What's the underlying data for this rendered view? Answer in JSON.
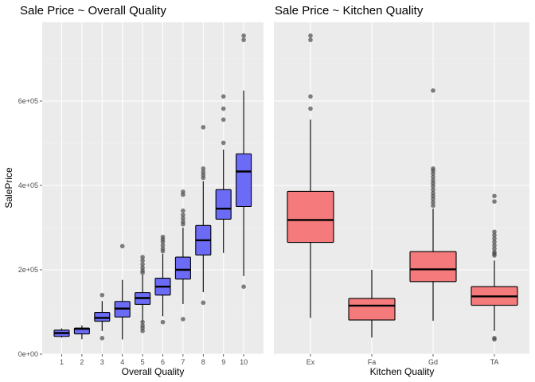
{
  "colors": {
    "panel_bg": "#ebebeb",
    "grid_major": "#ffffff",
    "grid_minor": "#f3f3f3",
    "box_fill_left": "#6b6bf5",
    "box_fill_right": "#f47a7c",
    "box_stroke": "#000000",
    "outlier": "#4a4a4a"
  },
  "chart_data": [
    {
      "type": "boxplot",
      "title": "Sale Price ~ Overall Quality",
      "xlabel": "Overall Quality",
      "ylabel": "SalePrice",
      "ylim": [
        0,
        760000
      ],
      "yticks": [
        0,
        200000,
        400000,
        600000
      ],
      "ytick_labels": [
        "0e+00",
        "2e+05",
        "4e+05",
        "6e+05"
      ],
      "grid": true,
      "categories": [
        "1",
        "2",
        "3",
        "4",
        "5",
        "6",
        "7",
        "8",
        "9",
        "10"
      ],
      "boxes": [
        {
          "category": "1",
          "whisker_low": 39300,
          "q1": 42000,
          "median": 50000,
          "q3": 57000,
          "whisker_high": 61000,
          "outliers": []
        },
        {
          "category": "2",
          "whisker_low": 35300,
          "q1": 48000,
          "median": 60000,
          "q3": 62000,
          "whisker_high": 68000,
          "outliers": []
        },
        {
          "category": "3",
          "whisker_low": 55000,
          "q1": 78000,
          "median": 86000,
          "q3": 99000,
          "whisker_high": 126000,
          "outliers": [
            140000,
            38000
          ]
        },
        {
          "category": "4",
          "whisker_low": 34900,
          "q1": 88000,
          "median": 108000,
          "q3": 125000,
          "whisker_high": 176000,
          "outliers": [
            256000
          ]
        },
        {
          "category": "5",
          "whisker_low": 76000,
          "q1": 118000,
          "median": 133000,
          "q3": 146000,
          "whisker_high": 188000,
          "outliers": [
            230000,
            222000,
            213000,
            205000,
            198000,
            193000,
            76000,
            68000,
            62000,
            55000
          ]
        },
        {
          "category": "6",
          "whisker_low": 90000,
          "q1": 140000,
          "median": 160000,
          "q3": 180000,
          "whisker_high": 238000,
          "outliers": [
            278000,
            272000,
            266000,
            258000,
            250000,
            244000,
            76000
          ]
        },
        {
          "category": "7",
          "whisker_low": 119000,
          "q1": 178000,
          "median": 200000,
          "q3": 230000,
          "whisker_high": 300000,
          "outliers": [
            385000,
            378000,
            340000,
            330000,
            322000,
            314000,
            308000,
            83000
          ]
        },
        {
          "category": "8",
          "whisker_low": 147000,
          "q1": 235000,
          "median": 270000,
          "q3": 305000,
          "whisker_high": 410000,
          "outliers": [
            538000,
            440000,
            432000,
            425000,
            418000,
            122000
          ]
        },
        {
          "category": "9",
          "whisker_low": 240000,
          "q1": 320000,
          "median": 345000,
          "q3": 390000,
          "whisker_high": 485000,
          "outliers": [
            611000,
            582000,
            556000,
            501000
          ]
        },
        {
          "category": "10",
          "whisker_low": 185000,
          "q1": 350000,
          "median": 433000,
          "q3": 475000,
          "whisker_high": 625000,
          "outliers": [
            755000,
            745000,
            160000
          ]
        }
      ]
    },
    {
      "type": "boxplot",
      "title": "Sale Price ~ Kitchen Quality",
      "xlabel": "Kitchen Quality",
      "ylabel": "",
      "ylim": [
        0,
        760000
      ],
      "yticks": [
        0,
        200000,
        400000,
        600000
      ],
      "grid": true,
      "categories": [
        "Ex",
        "Fa",
        "Gd",
        "TA"
      ],
      "boxes": [
        {
          "category": "Ex",
          "whisker_low": 86000,
          "q1": 265000,
          "median": 318000,
          "q3": 386000,
          "whisker_high": 556000,
          "outliers": [
            755000,
            745000,
            611000,
            582000
          ]
        },
        {
          "category": "Fa",
          "whisker_low": 39300,
          "q1": 81000,
          "median": 115000,
          "q3": 132000,
          "whisker_high": 200000,
          "outliers": []
        },
        {
          "category": "Gd",
          "whisker_low": 79000,
          "q1": 172000,
          "median": 201000,
          "q3": 243000,
          "whisker_high": 345000,
          "outliers": [
            625000,
            440000,
            435000,
            428000,
            420000,
            412000,
            405000,
            398000,
            390000,
            382000,
            375000,
            368000,
            360000,
            352000
          ]
        },
        {
          "category": "TA",
          "whisker_low": 55000,
          "q1": 116000,
          "median": 137000,
          "q3": 160000,
          "whisker_high": 222000,
          "outliers": [
            375000,
            362000,
            290000,
            282000,
            274000,
            266000,
            258000,
            250000,
            242000,
            238000,
            234000,
            38000,
            35000
          ]
        }
      ]
    }
  ]
}
